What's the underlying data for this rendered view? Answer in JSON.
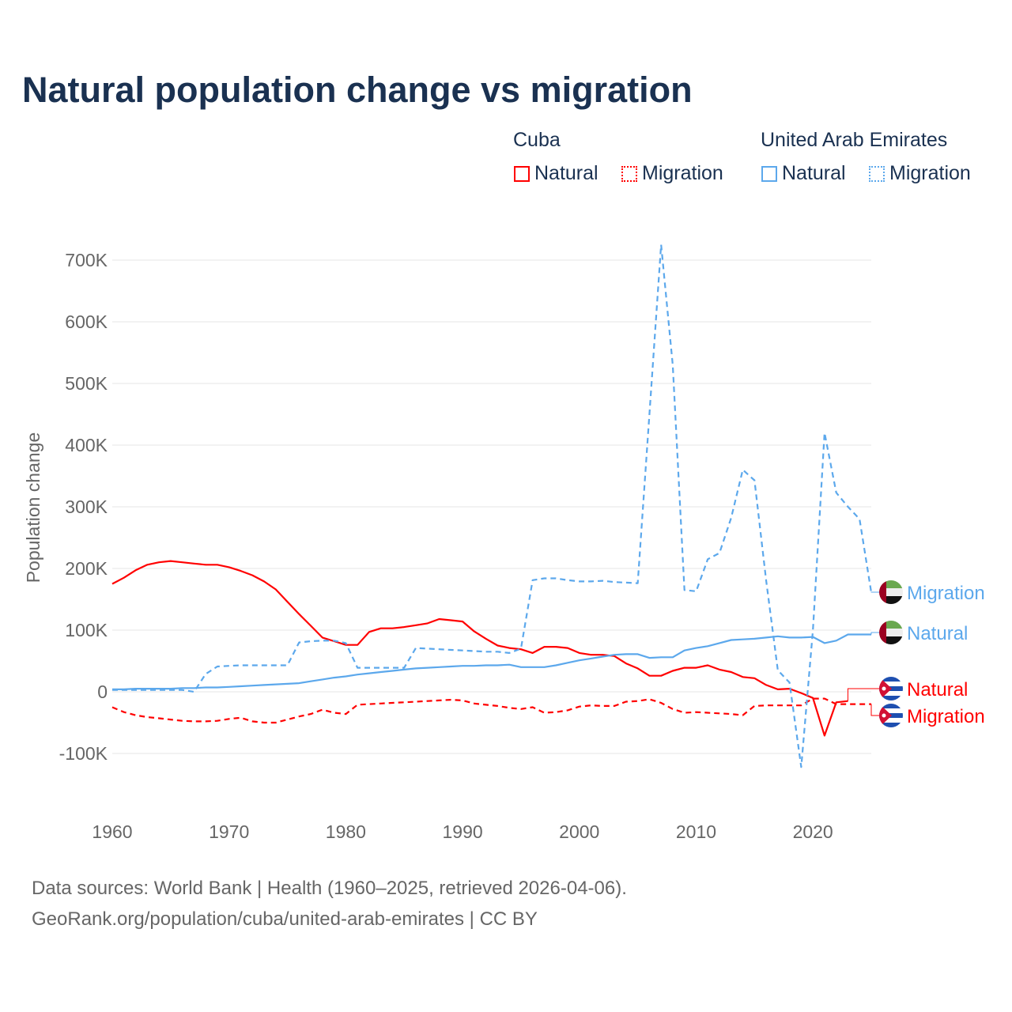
{
  "colors": {
    "cuba": "#ff0000",
    "uae": "#5ca8ec"
  },
  "legend": {
    "groups": [
      {
        "name": "Cuba",
        "items": [
          "Natural",
          "Migration"
        ]
      },
      {
        "name": "United Arab Emirates",
        "items": [
          "Natural",
          "Migration"
        ]
      }
    ]
  },
  "footer": {
    "line1": "Data sources: World Bank | Health (1960–2025, retrieved 2026-04-06).",
    "line2": "GeoRank.org/population/cuba/united-arab-emirates | CC BY"
  },
  "chart_data": {
    "type": "line",
    "title": "Natural population change vs migration",
    "xlabel": "",
    "ylabel": "Population change",
    "xlim": [
      1960,
      2025
    ],
    "ylim": [
      -150000,
      750000
    ],
    "xticks": [
      1960,
      1970,
      1980,
      1990,
      2000,
      2010,
      2020
    ],
    "xtick_labels": [
      "1960",
      "1970",
      "1980",
      "1990",
      "2000",
      "2010",
      "2020"
    ],
    "yticks": [
      -100000,
      0,
      100000,
      200000,
      300000,
      400000,
      500000,
      600000,
      700000
    ],
    "ytick_labels": [
      "-100K",
      "0",
      "100K",
      "200K",
      "300K",
      "400K",
      "500K",
      "600K",
      "700K"
    ],
    "grid": true,
    "legend_position": "top-right",
    "start_year": 1960,
    "series": [
      {
        "name": "Cuba Natural",
        "label": "Natural",
        "country": "cuba",
        "dash": false,
        "values": [
          175,
          185,
          197,
          206,
          210,
          212,
          210,
          208,
          206,
          206,
          202,
          196,
          189,
          179,
          166,
          146,
          126,
          107,
          88,
          82,
          76,
          76,
          97,
          103,
          103,
          105,
          108,
          111,
          118,
          116,
          114,
          98,
          86,
          75,
          71,
          69,
          63,
          73,
          73,
          71,
          63,
          60,
          60,
          58,
          46,
          38,
          26,
          26,
          34,
          39,
          39,
          43,
          36,
          32,
          24,
          22,
          11,
          4,
          5,
          -2,
          -10,
          -71,
          -17,
          -15
        ]
      },
      {
        "name": "Cuba Migration",
        "label": "Migration",
        "country": "cuba",
        "dash": true,
        "values": [
          -25,
          -33,
          -38,
          -41,
          -43,
          -45,
          -47,
          -48,
          -48,
          -47,
          -44,
          -42,
          -48,
          -50,
          -50,
          -45,
          -40,
          -36,
          -29,
          -34,
          -36,
          -21,
          -20,
          -19,
          -18,
          -17,
          -16,
          -15,
          -14,
          -13,
          -14,
          -19,
          -21,
          -23,
          -26,
          -28,
          -25,
          -34,
          -33,
          -30,
          -24,
          -22,
          -23,
          -23,
          -16,
          -15,
          -12,
          -18,
          -28,
          -34,
          -33,
          -34,
          -35,
          -36,
          -38,
          -23,
          -22,
          -22,
          -22,
          -22,
          -11,
          -11,
          -20,
          -20,
          -20,
          -20
        ]
      },
      {
        "name": "UAE Natural",
        "label": "Natural",
        "country": "uae",
        "dash": false,
        "values": [
          4,
          4,
          5,
          5,
          5,
          5,
          6,
          6,
          7,
          7,
          8,
          9,
          10,
          11,
          12,
          13,
          14,
          17,
          20,
          23,
          25,
          28,
          30,
          32,
          34,
          36,
          38,
          39,
          40,
          41,
          42,
          42,
          43,
          43,
          44,
          40,
          40,
          40,
          43,
          47,
          51,
          54,
          57,
          60,
          61,
          61,
          55,
          56,
          56,
          67,
          71,
          74,
          79,
          84,
          85,
          86,
          88,
          90,
          88,
          88,
          89,
          79,
          83,
          93,
          93,
          93
        ]
      },
      {
        "name": "UAE Migration",
        "label": "Migration",
        "country": "uae",
        "dash": true,
        "values": [
          3,
          3,
          3,
          3,
          3,
          3,
          3,
          0,
          29,
          41,
          42,
          43,
          43,
          43,
          43,
          43,
          80,
          82,
          83,
          83,
          79,
          39,
          39,
          39,
          39,
          39,
          71,
          70,
          69,
          68,
          67,
          66,
          65,
          65,
          63,
          70,
          181,
          184,
          184,
          181,
          179,
          179,
          180,
          178,
          177,
          176,
          450,
          725,
          530,
          165,
          163,
          215,
          225,
          282,
          360,
          343,
          180,
          35,
          15,
          -122,
          100,
          420,
          323,
          300,
          280,
          161
        ]
      }
    ],
    "value_unit": "thousands"
  }
}
